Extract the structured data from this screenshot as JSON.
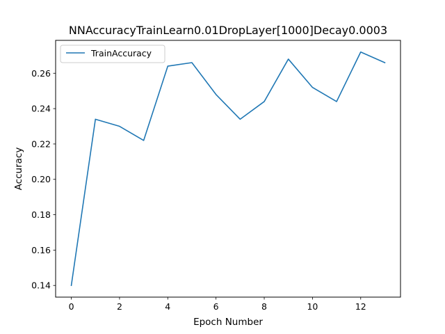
{
  "chart_data": {
    "type": "line",
    "title": "NNAccuracyTrainLearn0.01DropLayer[1000]Decay0.0003",
    "xlabel": "Epoch Number",
    "ylabel": "Accuracy",
    "xlim": [
      -0.65,
      13.65
    ],
    "ylim": [
      0.1334,
      0.2786
    ],
    "xticks": [
      0,
      2,
      4,
      6,
      8,
      10,
      12
    ],
    "xtick_labels": [
      "0",
      "2",
      "4",
      "6",
      "8",
      "10",
      "12"
    ],
    "yticks": [
      0.14,
      0.16,
      0.18,
      0.2,
      0.22,
      0.24,
      0.26
    ],
    "ytick_labels": [
      "0.14",
      "0.16",
      "0.18",
      "0.20",
      "0.22",
      "0.24",
      "0.26"
    ],
    "grid": false,
    "legend_position": "upper-left",
    "series": [
      {
        "name": "TrainAccuracy",
        "color": "#1f77b4",
        "x": [
          0,
          1,
          2,
          3,
          4,
          5,
          6,
          7,
          8,
          9,
          10,
          11,
          12,
          13
        ],
        "y": [
          0.14,
          0.234,
          0.23,
          0.222,
          0.264,
          0.266,
          0.248,
          0.234,
          0.244,
          0.268,
          0.252,
          0.244,
          0.272,
          0.266
        ]
      }
    ]
  }
}
